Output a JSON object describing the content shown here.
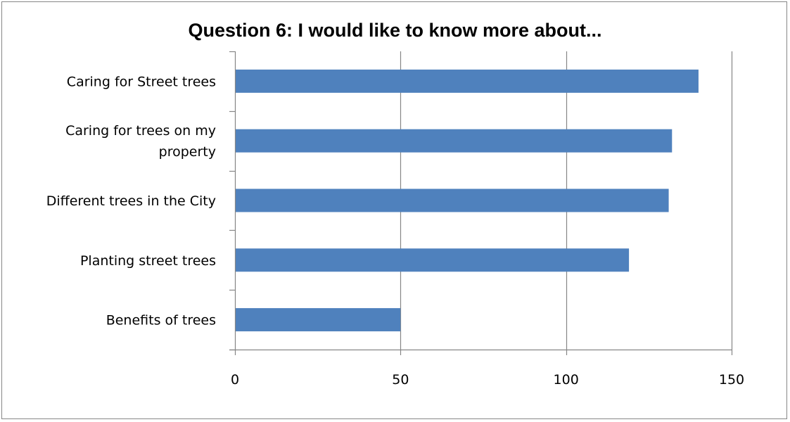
{
  "chart_data": {
    "type": "bar",
    "orientation": "horizontal",
    "title": "Question 6: I would like to know more about...",
    "xlabel": "",
    "ylabel": "",
    "categories": [
      "Caring for Street trees",
      "Caring for trees on my property",
      "Different trees in the City",
      "Planting street trees",
      "Benefits of trees"
    ],
    "category_lines": [
      [
        "Caring for Street trees"
      ],
      [
        "Caring for trees on my",
        "property"
      ],
      [
        "Different trees in the City"
      ],
      [
        "Planting street trees"
      ],
      [
        "Benefits of trees"
      ]
    ],
    "values": [
      140,
      132,
      131,
      119,
      50
    ],
    "xlim": [
      0,
      150
    ],
    "xticks": [
      0,
      50,
      100,
      150
    ],
    "xtick_labels": [
      "0",
      "50",
      "100",
      "150"
    ],
    "grid": "vertical",
    "legend": "none",
    "bar_color": "#4F81BD",
    "grid_color": "#868686"
  }
}
